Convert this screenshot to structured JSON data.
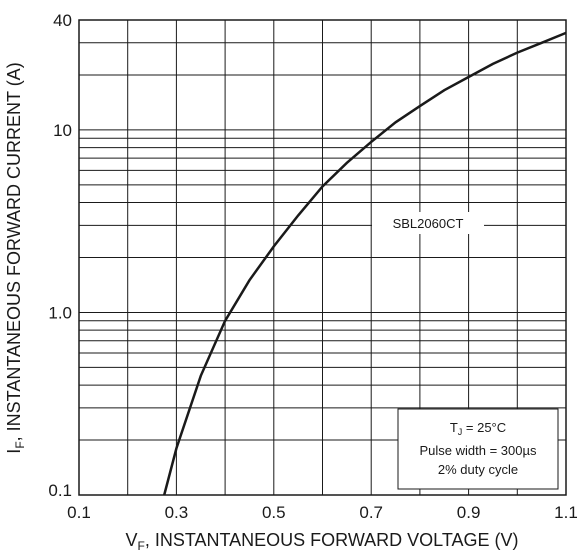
{
  "chart_data": {
    "type": "line",
    "x_scale": "linear",
    "y_scale": "log",
    "xlim": [
      0.1,
      1.1
    ],
    "ylim": [
      0.1,
      40
    ],
    "grid": true,
    "x_ticks": [
      0.1,
      0.3,
      0.5,
      0.7,
      0.9,
      1.1
    ],
    "x_tick_labels": [
      "0.1",
      "0.3",
      "0.5",
      "0.7",
      "0.9",
      "1.1"
    ],
    "y_ticks": [
      0.1,
      1.0,
      10,
      40
    ],
    "y_tick_labels": [
      "0.1",
      "1.0",
      "10",
      "40"
    ],
    "xlabel_main": "V",
    "xlabel_sub": "F",
    "xlabel_rest": ", INSTANTANEOUS FORWARD VOLTAGE (V)",
    "ylabel_main": "I",
    "ylabel_sub": "F",
    "ylabel_rest": ", INSTANTANEOUS FORWARD CURRENT (A)",
    "series": [
      {
        "name": "SBL2060CT",
        "x": [
          0.275,
          0.3,
          0.35,
          0.4,
          0.45,
          0.5,
          0.55,
          0.6,
          0.65,
          0.7,
          0.75,
          0.8,
          0.85,
          0.9,
          0.95,
          1.0,
          1.05,
          1.1
        ],
        "y": [
          0.1,
          0.18,
          0.45,
          0.9,
          1.5,
          2.3,
          3.4,
          4.9,
          6.6,
          8.6,
          11,
          13.5,
          16.5,
          19.5,
          23,
          26.5,
          30,
          34
        ]
      }
    ],
    "conditions": {
      "tj_main": "T",
      "tj_sub": "J",
      "tj_rest": " = 25°C",
      "pulse": "Pulse width = 300µs",
      "duty": "2% duty cycle"
    }
  }
}
